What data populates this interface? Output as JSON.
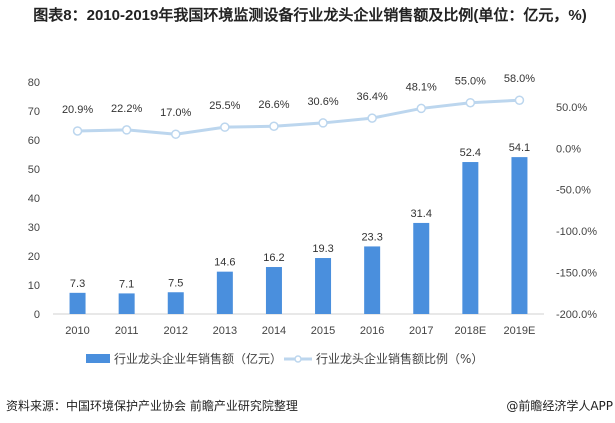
{
  "title": "图表8：2010-2019年我国环境监测设备行业龙头企业销售额及比例(单位：亿元，%)",
  "chart_data": {
    "type": "bar+line",
    "title": "图表8：2010-2019年我国环境监测设备行业龙头企业销售额及比例(单位：亿元，%)",
    "categories": [
      "2010",
      "2011",
      "2012",
      "2013",
      "2014",
      "2015",
      "2016",
      "2017",
      "2018E",
      "2019E"
    ],
    "series": [
      {
        "name": "行业龙头企业年销售额（亿元）",
        "type": "bar",
        "axis": "left",
        "color": "#4a8fdd",
        "values": [
          7.3,
          7.1,
          7.5,
          14.6,
          16.2,
          19.3,
          23.3,
          31.4,
          52.4,
          54.1
        ],
        "labels": [
          "7.3",
          "7.1",
          "7.5",
          "14.6",
          "16.2",
          "19.3",
          "23.3",
          "31.4",
          "52.4",
          "54.1"
        ]
      },
      {
        "name": "行业龙头企业销售额比例（%）",
        "type": "line",
        "axis": "right",
        "color": "#bcd6ee",
        "values": [
          20.9,
          22.2,
          17.0,
          25.5,
          26.6,
          30.6,
          36.4,
          48.1,
          55.0,
          58.0
        ],
        "labels": [
          "20.9%",
          "22.2%",
          "17.0%",
          "25.5%",
          "26.6%",
          "30.6%",
          "36.4%",
          "48.1%",
          "55.0%",
          "58.0%"
        ]
      }
    ],
    "left_axis": {
      "ylim": [
        0,
        80
      ],
      "ticks": [
        "0",
        "10",
        "20",
        "30",
        "40",
        "50",
        "60",
        "70",
        "80"
      ]
    },
    "right_axis": {
      "ylim": [
        -200,
        80
      ],
      "ticks": [
        "-200.0%",
        "-150.0%",
        "-100.0%",
        "-50.0%",
        "0.0%",
        "50.0%"
      ],
      "tick_values": [
        -200,
        -150,
        -100,
        -50,
        0,
        50
      ]
    },
    "grid": false,
    "legend": "bottom"
  },
  "source": "资料来源：中国环境保护产业协会 前瞻产业研究院整理",
  "brand": "@前瞻经济学人APP"
}
